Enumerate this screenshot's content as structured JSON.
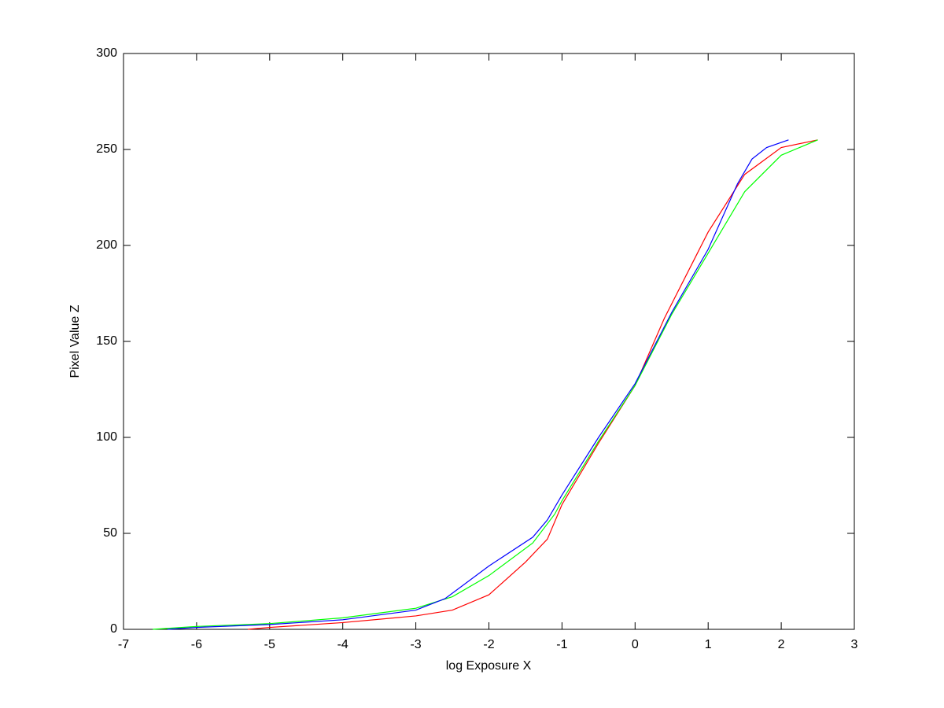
{
  "chart_data": {
    "type": "line",
    "xlabel": "log Exposure X",
    "ylabel": "Pixel Value Z",
    "xlim": [
      -7,
      3
    ],
    "xticks": [
      -7,
      -6,
      -5,
      -4,
      -3,
      -2,
      -1,
      0,
      1,
      2,
      3
    ],
    "ylim": [
      0,
      300
    ],
    "yticks": [
      0,
      50,
      100,
      150,
      200,
      250,
      300
    ],
    "grid": false,
    "series": [
      {
        "name": "red",
        "color": "#ff0000",
        "x": [
          -5.3,
          -5,
          -4,
          -3,
          -2.5,
          -2,
          -1.5,
          -1.2,
          -1,
          -0.5,
          0,
          0.4,
          1,
          1.5,
          2,
          2.5
        ],
        "values": [
          0,
          1,
          3.5,
          7,
          10,
          18,
          35,
          47,
          65,
          97,
          127,
          162,
          207,
          237,
          251,
          255
        ]
      },
      {
        "name": "green",
        "color": "#00ff00",
        "x": [
          -6.6,
          -6,
          -5,
          -4,
          -3,
          -2.5,
          -2,
          -1.4,
          -1.1,
          -1,
          -0.5,
          0,
          0.5,
          1,
          1.5,
          2,
          2.5
        ],
        "values": [
          0,
          1.5,
          3,
          6,
          11,
          17,
          28,
          45,
          60,
          67,
          98,
          127,
          164,
          196,
          228,
          247,
          255
        ]
      },
      {
        "name": "blue",
        "color": "#0000ff",
        "x": [
          -6.4,
          -6,
          -5,
          -4,
          -3,
          -2.6,
          -2,
          -1.4,
          -1.2,
          -1,
          -0.5,
          0,
          0.5,
          1,
          1.4,
          1.6,
          1.8,
          2.1
        ],
        "values": [
          0,
          1,
          2.5,
          5,
          10,
          16,
          33,
          48,
          57,
          70,
          100,
          128,
          165,
          198,
          232,
          245,
          251,
          255
        ]
      }
    ]
  }
}
